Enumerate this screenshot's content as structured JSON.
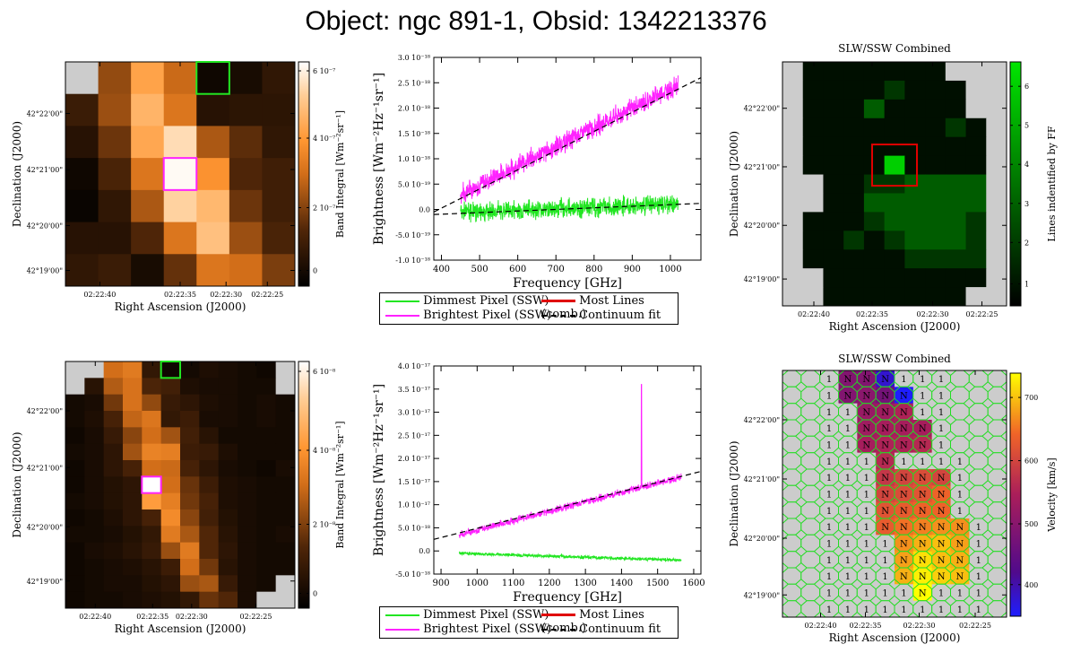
{
  "title": "Object: ngc 891-1, Obsid: 1342213376",
  "colors": {
    "dim": "#22e622",
    "bright": "#ff22ff",
    "most": "#e00000",
    "fit": "#000000",
    "nan": "#cccccc"
  },
  "legend": {
    "dimmest": "Dimmest Pixel (SSW)",
    "brightest": "Brightest Pixel (SSW)",
    "most_lines": "Most Lines (comb.)",
    "continuum": "Continuum fit"
  },
  "chart_data": [
    {
      "type": "heatmap",
      "id": "slw_band_map",
      "xlabel": "Right Ascension (J2000)",
      "ylabel": "Declination (J2000)",
      "x_ticks": [
        "02:22:40",
        "02:22:35",
        "02:22:30",
        "02:22:25"
      ],
      "y_ticks": [
        "42°19'00\"",
        "42°20'00\"",
        "42°21'00\"",
        "42°22'00\""
      ],
      "colorbar_label": "Band Integral [Wm⁻²sr⁻¹]",
      "colorbar_ticks": [
        "0",
        "2 10⁻⁷",
        "4 10⁻⁷",
        "6 10⁻⁷"
      ],
      "vmax": 6.6,
      "grid": [
        [
          null,
          2.5,
          4.6,
          3.2,
          0.3,
          0.5,
          1.0
        ],
        [
          1.2,
          2.6,
          5.0,
          3.5,
          0.8,
          0.9,
          0.9
        ],
        [
          0.8,
          2.0,
          4.7,
          5.9,
          2.8,
          1.8,
          1.0
        ],
        [
          0.3,
          1.5,
          3.5,
          6.5,
          4.2,
          1.6,
          1.3
        ],
        [
          0.2,
          1.0,
          2.8,
          5.7,
          5.1,
          2.0,
          1.3
        ],
        [
          0.8,
          0.8,
          1.6,
          3.5,
          5.3,
          2.6,
          1.5
        ],
        [
          1.0,
          1.2,
          0.5,
          1.9,
          3.5,
          3.3,
          2.2
        ]
      ],
      "green_box": [
        0,
        4
      ],
      "magenta_box": [
        3,
        3
      ]
    },
    {
      "type": "line",
      "id": "slw_spectrum",
      "xlabel": "Frequency [GHz]",
      "ylabel": "Brightness [Wm⁻²Hz⁻¹sr⁻¹]",
      "xlim": [
        380,
        1080
      ],
      "ylim": [
        -1.0,
        3.0
      ],
      "x_ticks": [
        400,
        500,
        600,
        700,
        800,
        900,
        1000
      ],
      "y_ticks": [
        -1.0,
        -0.5,
        0.0,
        0.5,
        1.0,
        1.5,
        2.0,
        2.5,
        3.0
      ],
      "y_tick_labels": [
        "-1.0 10⁻¹⁸",
        "-5.0 10⁻¹⁹",
        "0.0",
        "5.0 10⁻¹⁹",
        "1.0 10⁻¹⁸",
        "1.5 10⁻¹⁸",
        "2.0 10⁻¹⁸",
        "2.5 10⁻¹⁸",
        "3.0 10⁻¹⁸"
      ],
      "series": [
        {
          "name": "Brightest Pixel (SSW)",
          "x": [
            450,
            1020
          ],
          "values": [
            0.3,
            2.45
          ],
          "noise": 0.18
        },
        {
          "name": "Dimmest Pixel (SSW)",
          "x": [
            450,
            1020
          ],
          "values": [
            -0.05,
            0.1
          ],
          "noise": 0.17
        },
        {
          "name": "Continuum fit",
          "x": [
            380,
            1080
          ],
          "values": [
            -0.05,
            2.6
          ],
          "dashed": true
        },
        {
          "name": "Continuum fit (dim)",
          "x": [
            380,
            1080
          ],
          "values": [
            -0.1,
            0.12
          ],
          "dashed": true
        }
      ]
    },
    {
      "type": "heatmap",
      "id": "slw_lines_map",
      "title": "SLW/SSW Combined",
      "xlabel": "Right Ascension (J2000)",
      "ylabel": "Declination (J2000)",
      "x_ticks": [
        "02:22:40",
        "02:22:35",
        "02:22:30",
        "02:22:25"
      ],
      "y_ticks": [
        "42°19'00\"",
        "42°20'00\"",
        "42°21'00\"",
        "42°22'00\""
      ],
      "colorbar_label": "Lines indentified by FF",
      "colorbar_ticks": [
        "1",
        "2",
        "3",
        "4",
        "5",
        "6"
      ],
      "grid": [
        [
          null,
          1,
          1,
          1,
          1,
          1,
          1,
          1,
          null,
          null,
          null
        ],
        [
          null,
          1,
          1,
          1,
          1,
          2,
          1,
          1,
          1,
          null,
          null
        ],
        [
          null,
          1,
          1,
          1,
          3,
          1,
          1,
          1,
          1,
          null,
          null
        ],
        [
          null,
          1,
          1,
          1,
          1,
          1,
          1,
          1,
          2,
          1,
          null
        ],
        [
          null,
          1,
          1,
          1,
          1,
          1,
          1,
          1,
          1,
          1,
          null
        ],
        [
          null,
          1,
          1,
          1,
          1,
          6,
          1,
          1,
          1,
          1,
          null
        ],
        [
          null,
          null,
          1,
          1,
          2,
          2,
          3,
          3,
          3,
          3,
          null
        ],
        [
          null,
          null,
          1,
          1,
          3,
          3,
          3,
          3,
          3,
          3,
          null
        ],
        [
          null,
          1,
          1,
          1,
          2,
          3,
          3,
          3,
          3,
          2,
          null
        ],
        [
          null,
          1,
          1,
          2,
          1,
          2,
          3,
          3,
          3,
          2,
          null
        ],
        [
          null,
          1,
          1,
          1,
          1,
          1,
          2,
          2,
          2,
          2,
          null
        ],
        [
          null,
          null,
          1,
          1,
          1,
          1,
          1,
          1,
          1,
          1,
          null
        ],
        [
          null,
          null,
          1,
          1,
          1,
          1,
          1,
          1,
          1,
          null,
          null
        ]
      ],
      "red_box": [
        5,
        5
      ]
    },
    {
      "type": "heatmap",
      "id": "ssw_band_map",
      "xlabel": "Right Ascension (J2000)",
      "ylabel": "Declination (J2000)",
      "x_ticks": [
        "02:22:40",
        "02:22:35",
        "02:22:30",
        "02:22:25"
      ],
      "y_ticks": [
        "42°19'00\"",
        "42°20'00\"",
        "42°21'00\"",
        "42°22'00\""
      ],
      "colorbar_label": "Band Integral [Wm⁻²sr⁻¹]",
      "colorbar_ticks": [
        "0",
        "2 10⁻⁸",
        "4 10⁻⁸",
        "6 10⁻⁸"
      ],
      "vmax": 6.4,
      "grid": [
        [
          null,
          null,
          3.2,
          3.5,
          1.0,
          0.3,
          0.4,
          0.6,
          0.5,
          0.4,
          0.3,
          null
        ],
        [
          null,
          0.8,
          2.8,
          3.3,
          1.5,
          1.3,
          0.6,
          0.5,
          0.5,
          0.4,
          0.4,
          null
        ],
        [
          0.4,
          0.5,
          2.0,
          3.3,
          2.4,
          1.1,
          0.9,
          0.6,
          0.5,
          0.4,
          0.5,
          0.4
        ],
        [
          0.4,
          0.6,
          1.4,
          3.0,
          3.4,
          1.0,
          1.2,
          0.5,
          0.5,
          0.4,
          0.5,
          0.4
        ],
        [
          0.3,
          0.5,
          1.1,
          2.3,
          3.2,
          2.6,
          1.3,
          0.8,
          0.4,
          0.4,
          0.4,
          0.4
        ],
        [
          0.4,
          0.5,
          0.9,
          2.6,
          3.7,
          3.6,
          1.2,
          1.1,
          0.6,
          0.4,
          0.4,
          0.4
        ],
        [
          0.3,
          0.5,
          0.9,
          1.4,
          3.2,
          3.1,
          1.4,
          0.9,
          0.5,
          0.4,
          0.3,
          0.5
        ],
        [
          0.3,
          0.5,
          0.7,
          0.9,
          6.4,
          3.2,
          1.9,
          1.2,
          0.6,
          0.5,
          0.4,
          0.4
        ],
        [
          0.4,
          0.5,
          0.7,
          0.9,
          4.3,
          3.6,
          2.0,
          1.4,
          0.6,
          0.5,
          0.4,
          0.4
        ],
        [
          0.3,
          0.4,
          0.6,
          0.9,
          1.4,
          3.9,
          2.3,
          1.3,
          0.7,
          0.5,
          0.4,
          0.4
        ],
        [
          0.4,
          0.4,
          0.5,
          0.7,
          1.0,
          3.5,
          2.7,
          1.6,
          0.8,
          0.5,
          0.4,
          0.5
        ],
        [
          0.3,
          0.5,
          0.6,
          0.8,
          1.1,
          2.5,
          3.5,
          1.6,
          0.9,
          0.5,
          0.4,
          0.4
        ],
        [
          0.3,
          0.4,
          0.5,
          0.6,
          0.8,
          1.2,
          3.2,
          2.0,
          0.8,
          0.5,
          0.4,
          0.4
        ],
        [
          0.3,
          0.4,
          0.5,
          0.5,
          0.7,
          0.9,
          2.5,
          2.7,
          1.1,
          0.5,
          0.4,
          null
        ],
        [
          0.3,
          0.4,
          0.4,
          0.5,
          0.6,
          0.7,
          1.0,
          1.9,
          1.6,
          0.5,
          null,
          null
        ]
      ],
      "green_box": [
        0,
        5
      ],
      "magenta_box": [
        7,
        4
      ]
    },
    {
      "type": "line",
      "id": "ssw_spectrum",
      "xlabel": "Frequency [GHz]",
      "ylabel": "Brightness [Wm⁻²Hz⁻¹sr⁻¹]",
      "xlim": [
        880,
        1620
      ],
      "ylim": [
        -0.5,
        4.0
      ],
      "x_ticks": [
        900,
        1000,
        1100,
        1200,
        1300,
        1400,
        1500,
        1600
      ],
      "y_ticks": [
        -0.5,
        0.0,
        0.5,
        1.0,
        1.5,
        2.0,
        2.5,
        3.0,
        3.5,
        4.0
      ],
      "y_tick_labels": [
        "-5.0 10⁻¹⁸",
        "0.0",
        "5.0 10⁻¹⁸",
        "1.0 10⁻¹⁷",
        "1.5 10⁻¹⁷",
        "2.0 10⁻¹⁷",
        "2.5 10⁻¹⁷",
        "3.0 10⁻¹⁷",
        "3.5 10⁻¹⁷",
        "4.0 10⁻¹⁷"
      ],
      "series": [
        {
          "name": "Brightest Pixel (SSW)",
          "x": [
            950,
            1565
          ],
          "values": [
            0.35,
            1.6
          ],
          "noise": 0.07,
          "spike": [
            1455,
            3.6
          ]
        },
        {
          "name": "Dimmest Pixel (SSW)",
          "x": [
            950,
            1565
          ],
          "values": [
            -0.05,
            -0.2
          ],
          "noise": 0.03
        },
        {
          "name": "Continuum fit",
          "x": [
            880,
            1620
          ],
          "values": [
            0.25,
            1.72
          ],
          "dashed": true
        }
      ]
    },
    {
      "type": "heatmap",
      "id": "ssw_velocity_map",
      "title": "SLW/SSW Combined",
      "xlabel": "Right Ascension (J2000)",
      "ylabel": "Declination (J2000)",
      "x_ticks": [
        "02:22:40",
        "02:22:35",
        "02:22:30",
        "02:22:25"
      ],
      "y_ticks": [
        "42°19'00\"",
        "42°20'00\"",
        "42°21'00\"",
        "42°22'00\""
      ],
      "colorbar_label": "Velocity [km/s]",
      "colorbar_ticks": [
        "400",
        "500",
        "600",
        "700"
      ],
      "vmin": 350,
      "vmax": 740,
      "grid": [
        [
          null,
          null,
          1,
          490,
          490,
          380,
          1,
          1,
          1,
          null,
          null,
          null
        ],
        [
          null,
          null,
          1,
          490,
          500,
          470,
          320,
          1,
          1,
          null,
          null,
          null
        ],
        [
          null,
          null,
          1,
          1,
          520,
          530,
          550,
          1,
          1,
          null,
          null,
          null
        ],
        [
          null,
          null,
          1,
          1,
          530,
          540,
          540,
          540,
          1,
          null,
          null,
          null
        ],
        [
          null,
          null,
          1,
          1,
          540,
          550,
          550,
          560,
          1,
          null,
          null,
          null
        ],
        [
          null,
          null,
          1,
          1,
          1,
          560,
          1,
          1,
          1,
          1,
          null,
          null
        ],
        [
          null,
          null,
          1,
          1,
          1,
          580,
          600,
          610,
          600,
          1,
          null,
          null
        ],
        [
          null,
          null,
          1,
          1,
          1,
          600,
          610,
          620,
          640,
          1,
          null,
          null
        ],
        [
          null,
          null,
          1,
          1,
          1,
          620,
          630,
          640,
          640,
          1,
          null,
          null
        ],
        [
          null,
          null,
          1,
          1,
          1,
          630,
          650,
          660,
          670,
          670,
          1,
          null
        ],
        [
          null,
          null,
          1,
          1,
          1,
          1,
          670,
          690,
          700,
          680,
          1,
          null
        ],
        [
          null,
          null,
          1,
          1,
          1,
          1,
          680,
          720,
          700,
          690,
          1,
          null
        ],
        [
          null,
          null,
          1,
          1,
          1,
          1,
          690,
          730,
          710,
          700,
          1,
          null
        ],
        [
          null,
          null,
          1,
          1,
          1,
          1,
          1,
          740,
          1,
          1,
          1,
          null
        ],
        [
          null,
          null,
          1,
          1,
          1,
          1,
          1,
          1,
          1,
          1,
          1,
          null
        ]
      ]
    }
  ]
}
